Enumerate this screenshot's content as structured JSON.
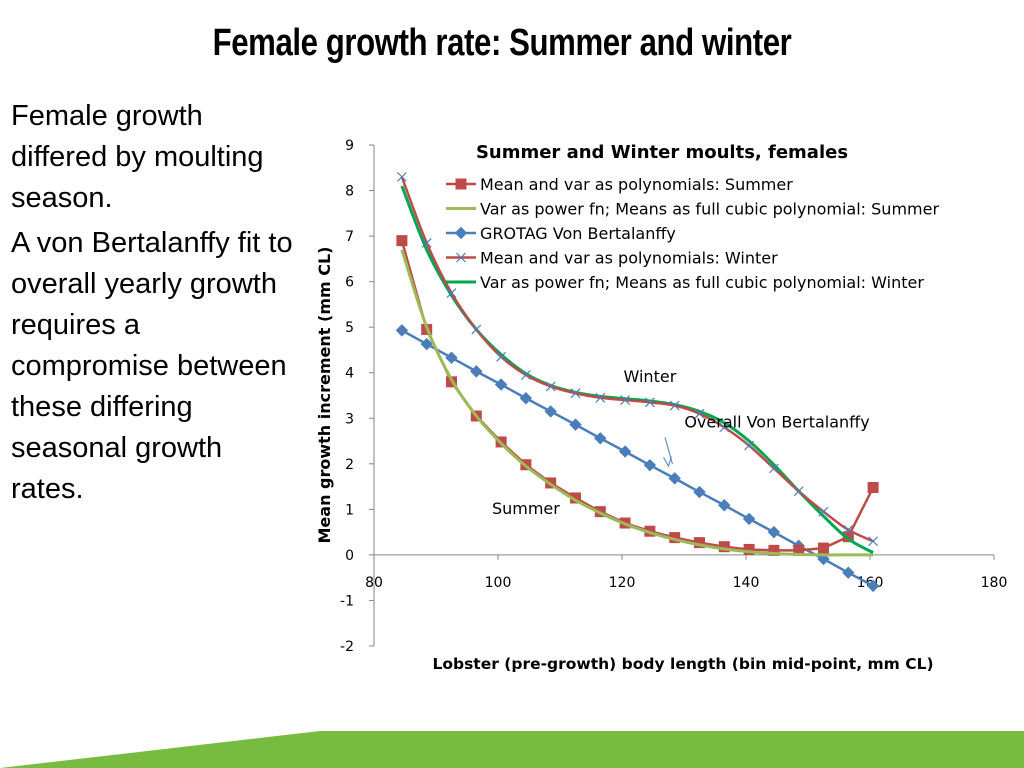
{
  "slide": {
    "title": "Female growth rate:  Summer and winter",
    "paragraphs": [
      "Female growth differed by moulting season.",
      "A von Bertalanffy fit to overall yearly growth requires a compromise between these differing seasonal growth rates."
    ],
    "footer_color": "#77bb41"
  },
  "chart_data": {
    "type": "line",
    "title": "Summer and Winter moults, females",
    "xlabel": "Lobster (pre-growth) body length (bin mid-point, mm CL)",
    "ylabel": "Mean growth increment (mm CL)",
    "xlim": [
      80,
      180
    ],
    "ylim": [
      -2,
      9
    ],
    "xticks": [
      80,
      100,
      120,
      140,
      160,
      180
    ],
    "yticks": [
      -2,
      -1,
      0,
      1,
      2,
      3,
      4,
      5,
      6,
      7,
      8,
      9
    ],
    "grid": false,
    "legend_position": "top-right",
    "annotations": [
      {
        "text": "Winter",
        "x": 124.5,
        "y": 3.8
      },
      {
        "text": "Summer",
        "x": 104.5,
        "y": 0.9
      },
      {
        "text": "Overall Von Bertalanffy",
        "x": 145,
        "y": 2.8,
        "arrow_to": [
          127.5,
          1.95
        ],
        "arrow_color": "#4a7ebb"
      }
    ],
    "series": [
      {
        "name": "Mean and var as polynomials:  Summer",
        "color": "#be4b48",
        "marker": "square",
        "x": [
          84.5,
          88.5,
          92.5,
          96.5,
          100.5,
          104.5,
          108.5,
          112.5,
          116.5,
          120.5,
          124.5,
          128.5,
          132.5,
          136.5,
          140.5,
          144.5,
          148.5,
          152.5,
          156.5,
          160.5
        ],
        "y": [
          6.9,
          4.95,
          3.8,
          3.05,
          2.48,
          1.98,
          1.58,
          1.25,
          0.95,
          0.7,
          0.52,
          0.38,
          0.27,
          0.18,
          0.12,
          0.1,
          0.1,
          0.15,
          0.4,
          1.48
        ]
      },
      {
        "name": "Var as power fn; Means as full cubic polynomial:  Summer",
        "color": "#9bbb59",
        "marker": "none",
        "x": [
          84.5,
          88.5,
          92.5,
          96.5,
          100.5,
          104.5,
          108.5,
          112.5,
          116.5,
          120.5,
          124.5,
          128.5,
          132.5,
          136.5,
          140.5,
          144.5,
          148.5,
          152.5,
          156.5,
          160.5
        ],
        "y": [
          6.7,
          5.0,
          3.85,
          3.05,
          2.45,
          1.95,
          1.55,
          1.2,
          0.92,
          0.68,
          0.49,
          0.34,
          0.22,
          0.13,
          0.07,
          0.03,
          0.01,
          0.0,
          0.0,
          0.0
        ]
      },
      {
        "name": "GROTAG Von Bertalanffy",
        "color": "#4a7ebb",
        "marker": "diamond",
        "x": [
          84.5,
          88.5,
          92.5,
          96.5,
          100.5,
          104.5,
          108.5,
          112.5,
          116.5,
          120.5,
          124.5,
          128.5,
          132.5,
          136.5,
          140.5,
          144.5,
          148.5,
          152.5,
          156.5,
          160.5
        ],
        "y": [
          4.93,
          4.63,
          4.33,
          4.03,
          3.74,
          3.44,
          3.15,
          2.86,
          2.56,
          2.27,
          1.97,
          1.68,
          1.38,
          1.09,
          0.79,
          0.5,
          0.2,
          -0.09,
          -0.39,
          -0.68
        ]
      },
      {
        "name": "Mean and var as polynomials:  Winter",
        "color": "#be4b48",
        "marker": "x",
        "x": [
          84.5,
          88.5,
          92.5,
          96.5,
          100.5,
          104.5,
          108.5,
          112.5,
          116.5,
          120.5,
          124.5,
          128.5,
          132.5,
          136.5,
          140.5,
          144.5,
          148.5,
          152.5,
          156.5,
          160.5
        ],
        "y": [
          8.3,
          6.85,
          5.75,
          4.95,
          4.35,
          3.95,
          3.7,
          3.55,
          3.45,
          3.4,
          3.35,
          3.28,
          3.1,
          2.8,
          2.4,
          1.9,
          1.4,
          0.95,
          0.55,
          0.3
        ]
      },
      {
        "name": "Var as power fn; Means as full cubic polynomial:  Winter",
        "color": "#00a650",
        "marker": "none",
        "x": [
          84.5,
          88.5,
          92.5,
          96.5,
          100.5,
          104.5,
          108.5,
          112.5,
          116.5,
          120.5,
          124.5,
          128.5,
          132.5,
          136.5,
          140.5,
          144.5,
          148.5,
          152.5,
          156.5,
          160.5
        ],
        "y": [
          8.1,
          6.7,
          5.7,
          4.95,
          4.4,
          3.98,
          3.72,
          3.57,
          3.48,
          3.43,
          3.38,
          3.3,
          3.15,
          2.9,
          2.5,
          1.98,
          1.4,
          0.85,
          0.35,
          0.05
        ]
      }
    ]
  }
}
